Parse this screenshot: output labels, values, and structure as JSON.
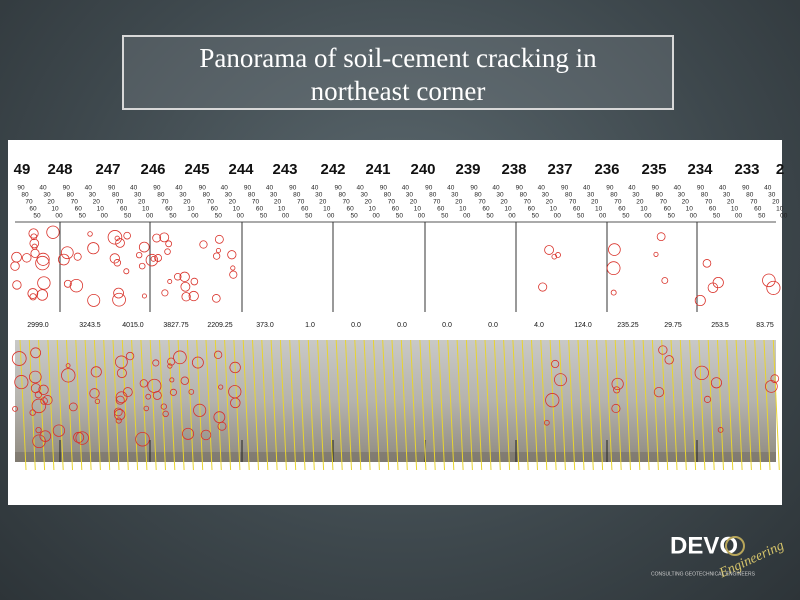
{
  "header": {
    "title_lines": [
      "Panorama of soil-cement cracking in",
      "northeast corner"
    ]
  },
  "panorama": {
    "stations": [
      "49",
      "248",
      "247",
      "246",
      "245",
      "244",
      "243",
      "242",
      "241",
      "240",
      "239",
      "238",
      "237",
      "236",
      "235",
      "234",
      "233",
      "2"
    ],
    "scale_labels": [
      "90",
      "40",
      "80",
      "30",
      "70",
      "20",
      "60",
      "10",
      "50",
      "00"
    ],
    "crack_values": [
      "2999.0",
      "3243.5",
      "4015.0",
      "3827.75",
      "2209.25",
      "373.0",
      "1.0",
      "0.0",
      "0.0",
      "0.0",
      "0.0",
      "4.0",
      "124.0",
      "235.25",
      "29.75",
      "253.5",
      "83.75"
    ]
  },
  "logo": {
    "name": "DEVO",
    "script": "Engineering",
    "tagline": "CONSULTING GEOTECHNICAL ENGINEERS"
  }
}
